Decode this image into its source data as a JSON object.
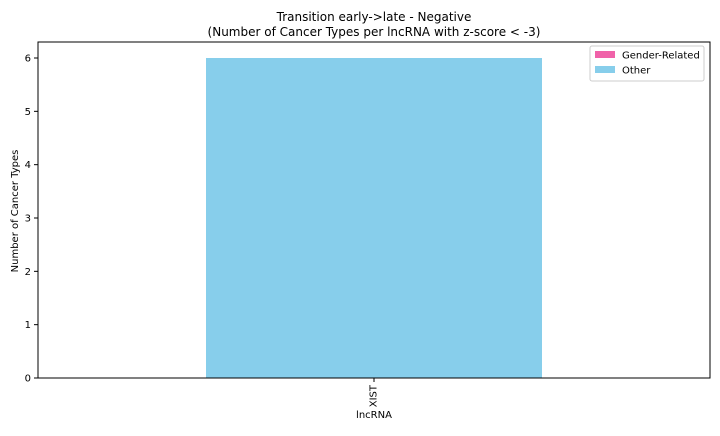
{
  "chart_data": {
    "type": "bar",
    "title": "Transition early->late - Negative",
    "subtitle": "(Number of Cancer Types per lncRNA with z-score < -3)",
    "xlabel": "lncRNA",
    "ylabel": "Number of Cancer Types",
    "categories": [
      "XIST"
    ],
    "series": [
      {
        "name": "Gender-Related",
        "values": [
          0
        ],
        "color": "#f062a9"
      },
      {
        "name": "Other",
        "values": [
          6
        ],
        "color": "#87ceeb"
      }
    ],
    "stacked": true,
    "ylim": [
      0,
      6.3
    ],
    "yticks": [
      0,
      1,
      2,
      3,
      4,
      5,
      6
    ],
    "grid": false,
    "legend_position": "top-right"
  }
}
